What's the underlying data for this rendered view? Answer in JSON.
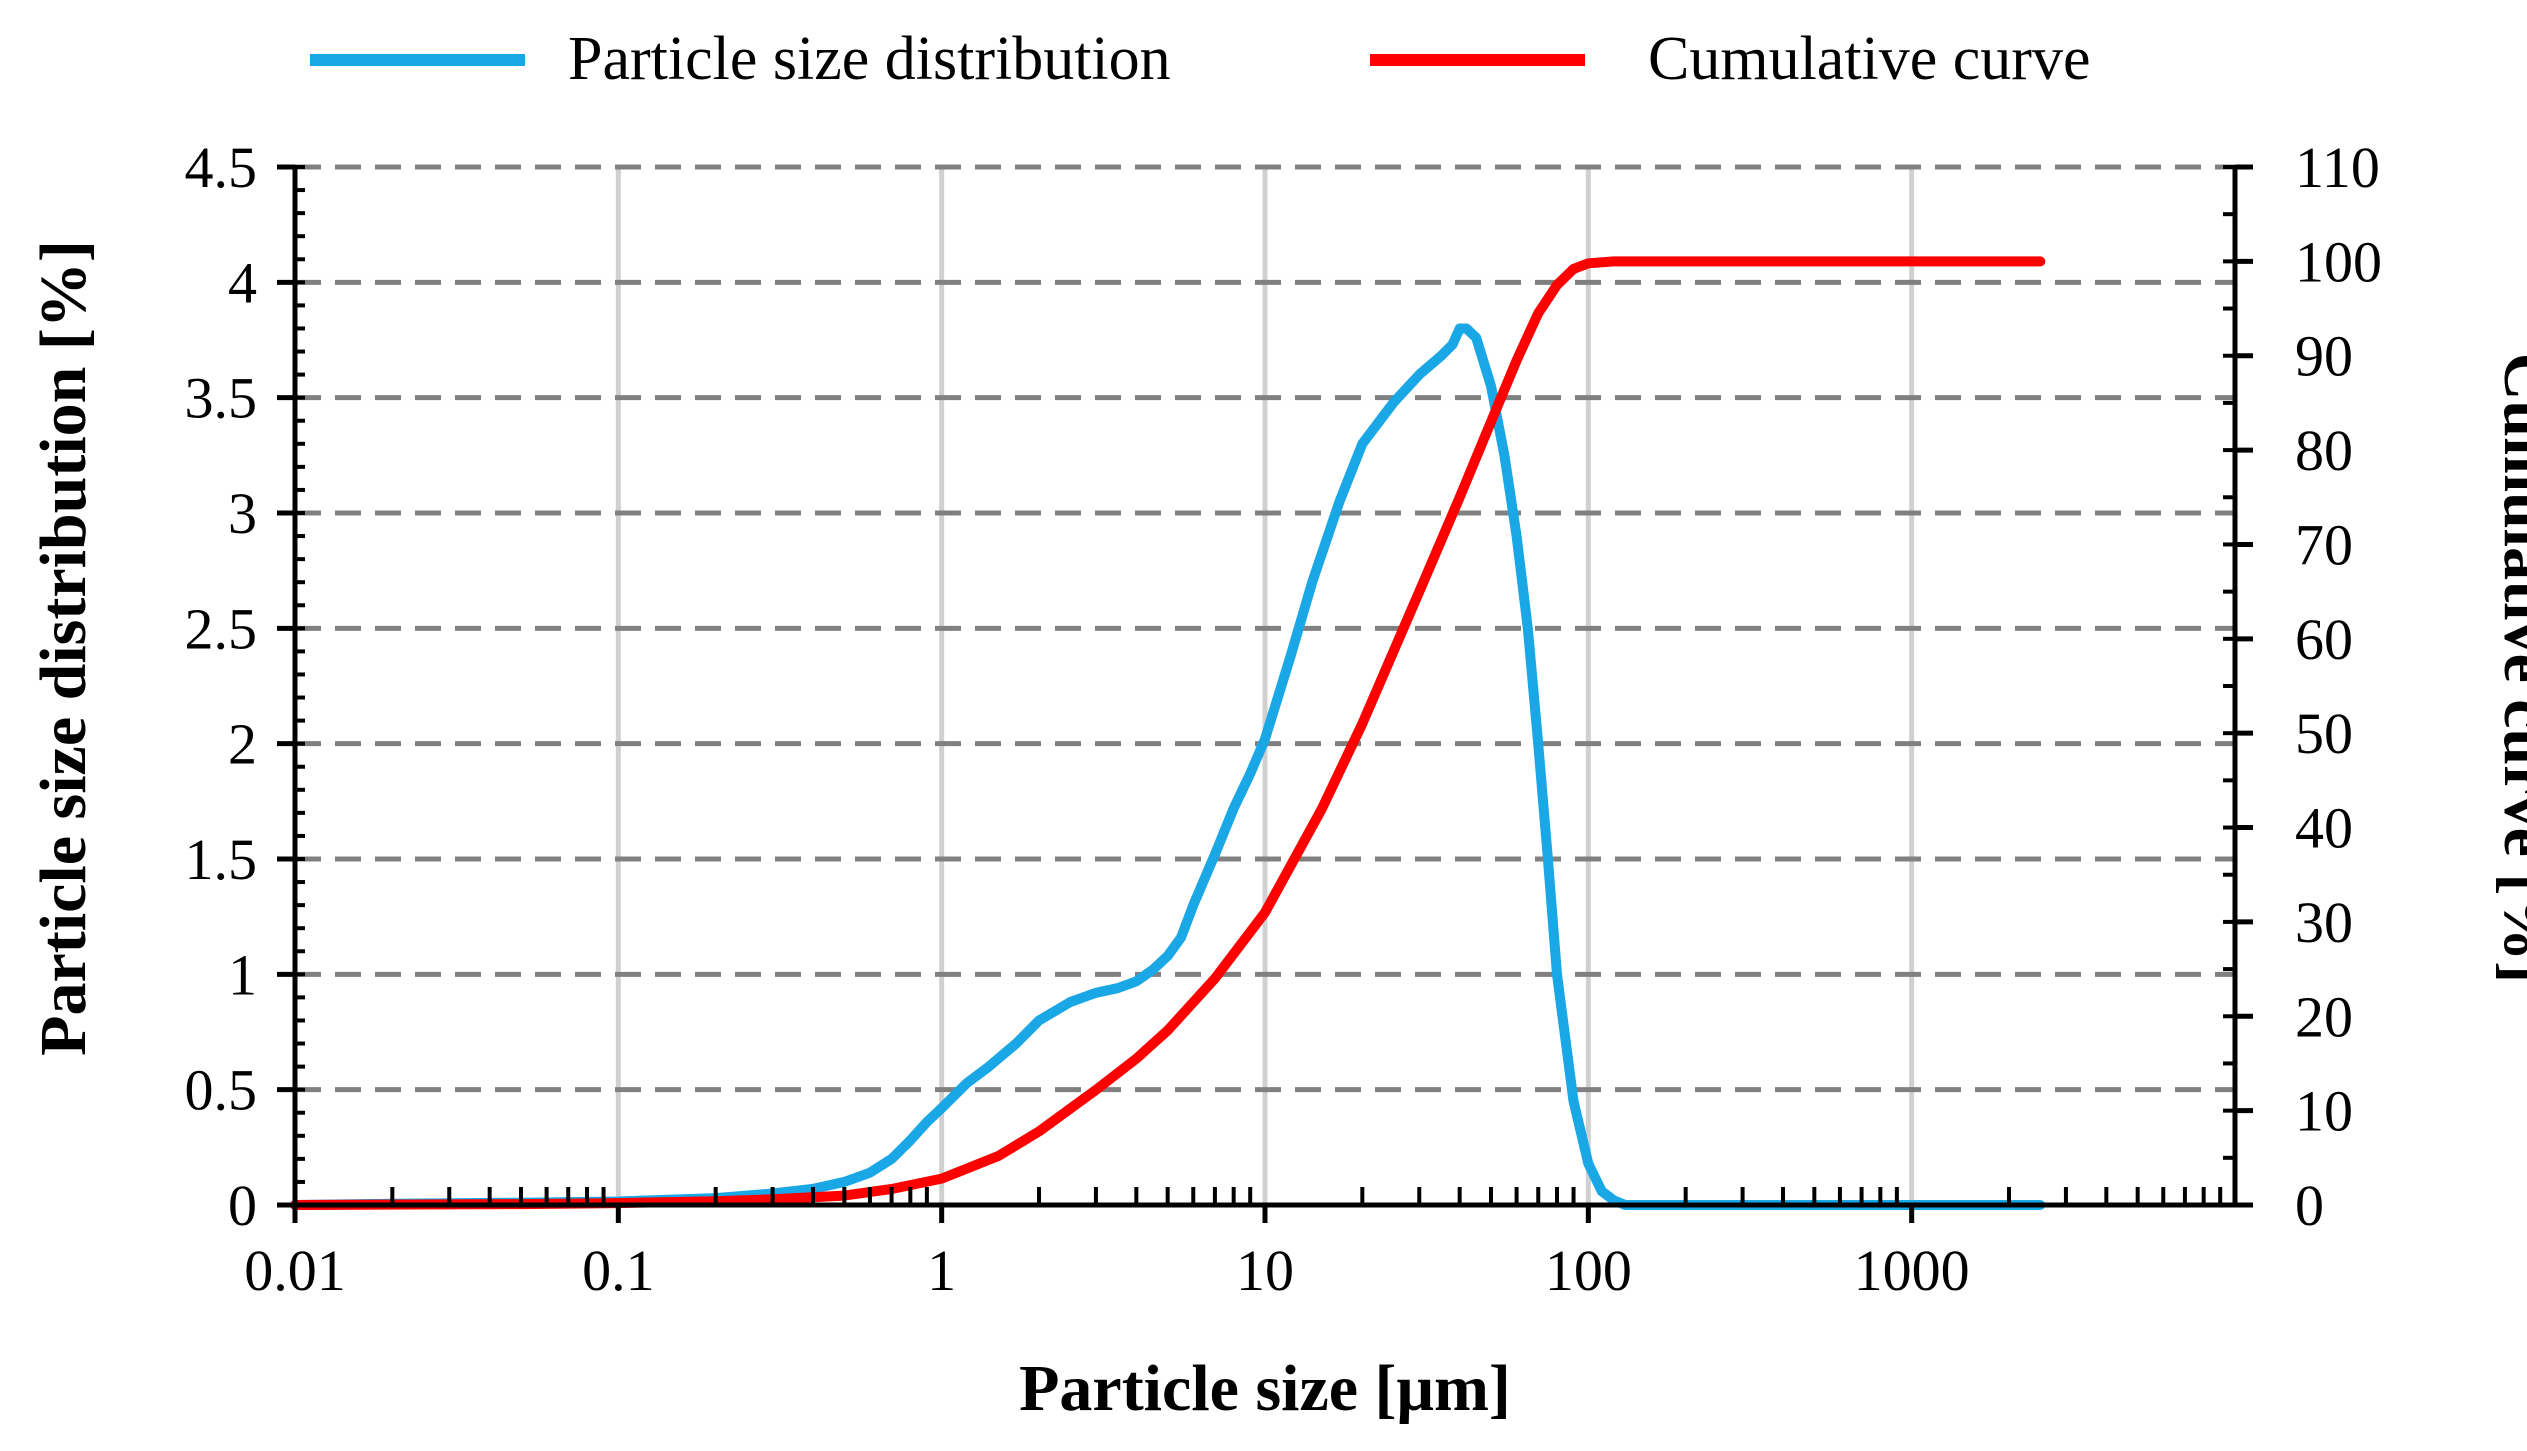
{
  "chart_data": {
    "type": "line",
    "title": "",
    "xlabel": "Particle size [μm]",
    "ylabel": "Particle size distribution [%]",
    "y2label": "Cumulative curve [%]",
    "xscale": "log",
    "xlim": [
      0.01,
      10000
    ],
    "ylim": [
      0,
      4.5
    ],
    "y2lim": [
      0,
      110
    ],
    "x_ticks": [
      0.01,
      0.1,
      1,
      10,
      100,
      1000
    ],
    "x_tick_labels": [
      "0.01",
      "0.1",
      "1",
      "10",
      "100",
      "1000"
    ],
    "y_ticks": [
      0,
      0.5,
      1,
      1.5,
      2,
      2.5,
      3,
      3.5,
      4,
      4.5
    ],
    "y_tick_labels": [
      "0",
      "0.5",
      "1",
      "1.5",
      "2",
      "2.5",
      "3",
      "3.5",
      "4",
      "4.5"
    ],
    "y2_ticks": [
      0,
      10,
      20,
      30,
      40,
      50,
      60,
      70,
      80,
      90,
      100,
      110
    ],
    "y2_tick_labels": [
      "0",
      "10",
      "20",
      "30",
      "40",
      "50",
      "60",
      "70",
      "80",
      "90",
      "100",
      "110"
    ],
    "grid": "horizontal dashed, vertical solid",
    "legend_position": "top",
    "series": [
      {
        "name": "Particle size distribution",
        "axis": "left",
        "color": "#1aa7e6",
        "x": [
          0.01,
          0.02,
          0.05,
          0.1,
          0.2,
          0.3,
          0.4,
          0.5,
          0.6,
          0.7,
          0.8,
          0.9,
          1.0,
          1.2,
          1.4,
          1.7,
          2.0,
          2.5,
          3.0,
          3.5,
          4.0,
          4.5,
          5.0,
          5.5,
          6.0,
          7.0,
          8.0,
          9.0,
          10,
          12,
          14,
          17,
          20,
          25,
          30,
          35,
          38,
          40,
          42,
          45,
          50,
          55,
          60,
          65,
          70,
          75,
          80,
          90,
          100,
          110,
          120,
          130,
          150,
          200,
          500,
          1000,
          2000,
          2500
        ],
        "values": [
          0.0,
          0.005,
          0.01,
          0.015,
          0.03,
          0.05,
          0.07,
          0.1,
          0.14,
          0.2,
          0.28,
          0.36,
          0.42,
          0.53,
          0.6,
          0.7,
          0.8,
          0.88,
          0.92,
          0.94,
          0.97,
          1.02,
          1.08,
          1.16,
          1.3,
          1.52,
          1.72,
          1.87,
          2.02,
          2.38,
          2.7,
          3.05,
          3.3,
          3.48,
          3.6,
          3.68,
          3.73,
          3.8,
          3.8,
          3.76,
          3.55,
          3.25,
          2.9,
          2.5,
          2.0,
          1.5,
          1.0,
          0.45,
          0.18,
          0.06,
          0.02,
          0.0,
          0.0,
          0.0,
          0.0,
          0.0,
          0.0,
          0.0
        ]
      },
      {
        "name": "Cumulative curve",
        "axis": "right",
        "color": "#ff0000",
        "x": [
          0.01,
          0.05,
          0.1,
          0.2,
          0.3,
          0.5,
          0.7,
          1.0,
          1.5,
          2.0,
          3.0,
          4.0,
          5.0,
          7.0,
          10,
          15,
          20,
          30,
          40,
          50,
          60,
          70,
          80,
          90,
          100,
          120,
          150,
          200,
          500,
          1000,
          2500
        ],
        "values": [
          0.0,
          0.1,
          0.2,
          0.4,
          0.6,
          1.0,
          1.7,
          2.8,
          5.2,
          7.8,
          12.2,
          15.5,
          18.5,
          24.0,
          31.0,
          42.0,
          51.0,
          65.0,
          75.0,
          83.0,
          89.5,
          94.5,
          97.5,
          99.2,
          99.8,
          100.0,
          100.0,
          100.0,
          100.0,
          100.0,
          100.0
        ]
      }
    ]
  }
}
